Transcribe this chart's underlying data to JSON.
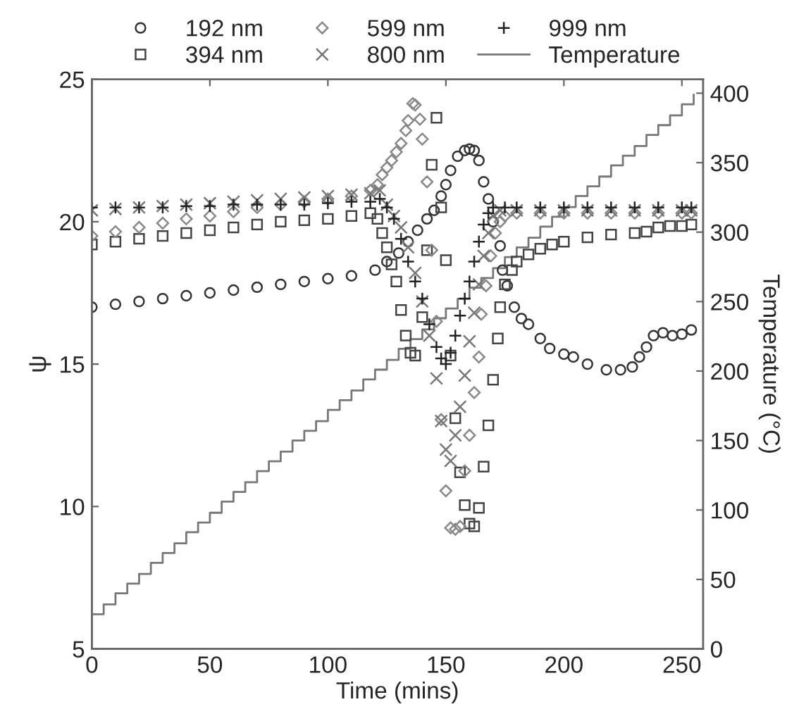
{
  "chart_data": {
    "type": "scatter",
    "xlabel": "Time (mins)",
    "ylabel": "ψ",
    "y2label": "Temperature (°C)",
    "xlim": [
      0,
      259
    ],
    "xticks": [
      0,
      50,
      100,
      150,
      200,
      250
    ],
    "ylim": [
      5,
      25
    ],
    "yticks": [
      5,
      10,
      15,
      20,
      25
    ],
    "y2lim": [
      0,
      410
    ],
    "y2ticks": [
      0,
      50,
      100,
      150,
      200,
      250,
      300,
      350,
      400
    ],
    "legend": "top",
    "series": [
      {
        "name": "192 nm",
        "marker": "circle",
        "color": "#333333",
        "x": [
          0,
          10,
          20,
          30,
          40,
          50,
          60,
          70,
          80,
          90,
          100,
          110,
          120,
          125,
          130,
          134,
          138,
          142,
          145,
          148,
          150,
          152,
          155,
          158,
          160,
          162,
          164,
          166,
          168,
          170,
          173,
          174,
          176,
          179,
          182,
          185,
          190,
          194,
          200,
          204,
          210,
          218,
          224,
          229,
          232,
          235,
          238,
          242,
          246,
          250,
          254
        ],
        "values": [
          17.0,
          17.1,
          17.2,
          17.3,
          17.4,
          17.5,
          17.6,
          17.7,
          17.8,
          17.9,
          18.0,
          18.1,
          18.3,
          18.6,
          18.9,
          19.3,
          19.7,
          20.1,
          20.4,
          20.9,
          21.3,
          21.8,
          22.3,
          22.5,
          22.55,
          22.5,
          22.15,
          21.4,
          20.8,
          20.0,
          19.15,
          18.3,
          17.75,
          17.0,
          16.6,
          16.4,
          15.9,
          15.55,
          15.35,
          15.25,
          15.0,
          14.8,
          14.8,
          14.9,
          15.25,
          15.6,
          16.0,
          16.1,
          16.0,
          16.05,
          16.2
        ]
      },
      {
        "name": "394 nm",
        "marker": "square",
        "color": "#444444",
        "x": [
          0,
          10,
          20,
          30,
          40,
          50,
          60,
          70,
          80,
          90,
          100,
          110,
          118,
          121,
          123,
          125,
          127,
          129,
          131,
          133,
          135,
          137,
          140,
          142,
          144,
          146,
          148,
          150,
          152,
          154,
          156,
          158,
          160,
          162,
          164,
          166,
          168,
          170,
          172,
          173,
          175,
          178,
          180,
          185,
          190,
          195,
          200,
          210,
          220,
          230,
          235,
          240,
          245,
          250,
          254
        ],
        "values": [
          19.2,
          19.3,
          19.4,
          19.5,
          19.6,
          19.7,
          19.8,
          19.9,
          20.0,
          20.05,
          20.1,
          20.2,
          20.3,
          20.1,
          19.6,
          19.1,
          18.5,
          17.9,
          16.9,
          16.0,
          15.4,
          15.3,
          16.65,
          19.0,
          22.0,
          23.65,
          20.5,
          18.65,
          15.3,
          13.1,
          11.2,
          10.05,
          9.4,
          9.3,
          9.95,
          11.4,
          12.85,
          14.45,
          15.9,
          17.0,
          17.8,
          18.3,
          18.6,
          18.85,
          19.05,
          19.2,
          19.3,
          19.45,
          19.55,
          19.6,
          19.65,
          19.8,
          19.85,
          19.85,
          19.9
        ]
      },
      {
        "name": "599 nm",
        "marker": "diamond",
        "color": "#888888",
        "x": [
          0,
          10,
          20,
          30,
          40,
          50,
          60,
          70,
          80,
          90,
          100,
          110,
          118,
          121,
          123,
          125,
          127,
          129,
          131,
          133,
          134,
          136,
          137,
          139,
          140,
          142,
          144,
          146,
          148,
          150,
          152,
          154,
          156,
          158,
          160,
          162,
          164,
          165,
          167,
          169,
          171,
          173,
          175,
          180,
          190,
          200,
          210,
          220,
          230,
          240,
          250,
          254
        ],
        "values": [
          19.5,
          19.65,
          19.8,
          19.95,
          20.1,
          20.2,
          20.35,
          20.5,
          20.6,
          20.7,
          20.8,
          20.9,
          21.1,
          21.3,
          21.65,
          21.9,
          22.15,
          22.45,
          22.75,
          23.2,
          23.55,
          24.15,
          24.1,
          23.6,
          22.9,
          21.4,
          19.0,
          16.5,
          13.05,
          10.55,
          9.25,
          9.2,
          9.3,
          11.25,
          12.5,
          14.0,
          15.25,
          16.75,
          17.75,
          18.8,
          19.6,
          20.0,
          20.2,
          20.3,
          20.3,
          20.3,
          20.3,
          20.3,
          20.3,
          20.3,
          20.3,
          20.3
        ]
      },
      {
        "name": "800 nm",
        "marker": "cross",
        "color": "#777777",
        "x": [
          0,
          10,
          20,
          30,
          40,
          50,
          60,
          70,
          80,
          90,
          100,
          110,
          118,
          122,
          125,
          128,
          131,
          134,
          137,
          140,
          143,
          146,
          148,
          150,
          152,
          154,
          156,
          158,
          160,
          162,
          164,
          166,
          168,
          170,
          173,
          180,
          190,
          200,
          210,
          220,
          230,
          240,
          250,
          254
        ],
        "values": [
          20.4,
          20.45,
          20.5,
          20.55,
          20.6,
          20.65,
          20.7,
          20.75,
          20.8,
          20.85,
          20.9,
          20.95,
          21.0,
          21.1,
          20.6,
          20.2,
          19.8,
          19.1,
          18.2,
          17.2,
          16.0,
          14.5,
          13.0,
          12.0,
          11.6,
          12.5,
          13.5,
          14.6,
          15.8,
          16.8,
          17.8,
          18.8,
          19.6,
          20.2,
          20.4,
          20.4,
          20.4,
          20.4,
          20.4,
          20.4,
          20.4,
          20.4,
          20.4,
          20.4
        ]
      },
      {
        "name": "999 nm",
        "marker": "plus",
        "color": "#222222",
        "x": [
          0,
          10,
          20,
          30,
          40,
          50,
          60,
          70,
          80,
          90,
          100,
          110,
          118,
          122,
          125,
          128,
          131,
          134,
          137,
          140,
          143,
          146,
          148,
          150,
          152,
          154,
          156,
          158,
          160,
          162,
          164,
          166,
          168,
          170,
          175,
          180,
          190,
          200,
          210,
          220,
          230,
          240,
          250,
          254
        ],
        "values": [
          20.5,
          20.5,
          20.5,
          20.5,
          20.55,
          20.55,
          20.6,
          20.6,
          20.6,
          20.6,
          20.65,
          20.7,
          20.7,
          20.8,
          20.5,
          20.1,
          19.4,
          18.6,
          17.9,
          17.3,
          16.4,
          15.6,
          15.2,
          15.0,
          15.4,
          16.0,
          16.7,
          17.3,
          17.9,
          18.6,
          19.3,
          19.9,
          20.3,
          20.5,
          20.5,
          20.5,
          20.5,
          20.5,
          20.5,
          20.5,
          20.5,
          20.5,
          20.5,
          20.5
        ]
      },
      {
        "name": "Temperature",
        "type": "step",
        "axis": "y2",
        "color": "#777777",
        "x": [
          0,
          5,
          10,
          15,
          20,
          25,
          30,
          35,
          40,
          45,
          50,
          55,
          60,
          65,
          70,
          75,
          80,
          85,
          90,
          95,
          100,
          105,
          110,
          115,
          120,
          125,
          130,
          135,
          140,
          145,
          150,
          155,
          160,
          165,
          170,
          175,
          180,
          185,
          190,
          195,
          200,
          205,
          210,
          215,
          220,
          225,
          230,
          235,
          240,
          245,
          250,
          255
        ],
        "values": [
          25,
          32,
          40,
          47,
          54,
          62,
          69,
          76,
          84,
          91,
          98,
          106,
          113,
          120,
          128,
          135,
          142,
          150,
          157,
          164,
          172,
          179,
          186,
          194,
          201,
          208,
          216,
          223,
          230,
          238,
          245,
          252,
          260,
          267,
          274,
          282,
          289,
          296,
          304,
          311,
          318,
          326,
          333,
          340,
          348,
          355,
          362,
          370,
          377,
          384,
          392,
          399
        ]
      }
    ]
  }
}
